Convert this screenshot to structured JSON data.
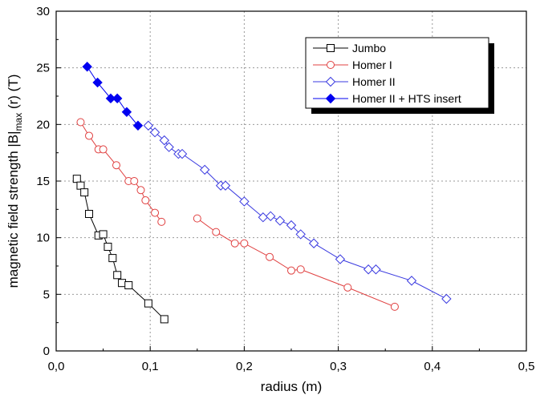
{
  "chart_data": {
    "type": "line",
    "xlabel": "radius (m)",
    "ylabel": {
      "main": "magnetic field strength |B|",
      "subscript": "max",
      "tail": " (r)  (T)"
    },
    "xlim": [
      0.0,
      0.5
    ],
    "ylim": [
      0,
      30
    ],
    "xticks": [
      0.0,
      0.1,
      0.2,
      0.3,
      0.4,
      0.5
    ],
    "xtick_labels": [
      "0,0",
      "0,1",
      "0,2",
      "0,3",
      "0,4",
      "0,5"
    ],
    "yticks": [
      0,
      5,
      10,
      15,
      20,
      25,
      30
    ],
    "ytick_labels": [
      "0",
      "5",
      "10",
      "15",
      "20",
      "25",
      "30"
    ],
    "grid": "dotted",
    "legend_position": "top-right",
    "series": [
      {
        "name": "Jumbo",
        "color": "#000000",
        "marker": "square-open",
        "segments": [
          [
            [
              0.022,
              15.2
            ],
            [
              0.026,
              14.6
            ],
            [
              0.03,
              14.0
            ],
            [
              0.035,
              12.1
            ],
            [
              0.045,
              10.2
            ],
            [
              0.05,
              10.3
            ],
            [
              0.055,
              9.2
            ],
            [
              0.06,
              8.2
            ],
            [
              0.065,
              6.7
            ],
            [
              0.07,
              6.0
            ],
            [
              0.077,
              5.8
            ],
            [
              0.098,
              4.2
            ],
            [
              0.115,
              2.8
            ]
          ]
        ]
      },
      {
        "name": "Homer I",
        "color": "#e04040",
        "marker": "circle-open",
        "segments": [
          [
            [
              0.026,
              20.2
            ],
            [
              0.035,
              19.0
            ],
            [
              0.045,
              17.8
            ],
            [
              0.05,
              17.8
            ],
            [
              0.064,
              16.4
            ],
            [
              0.077,
              15.0
            ],
            [
              0.083,
              15.0
            ],
            [
              0.09,
              14.2
            ],
            [
              0.095,
              13.3
            ],
            [
              0.105,
              12.2
            ],
            [
              0.112,
              11.4
            ]
          ],
          [
            [
              0.15,
              11.7
            ],
            [
              0.17,
              10.5
            ],
            [
              0.19,
              9.5
            ],
            [
              0.2,
              9.5
            ],
            [
              0.227,
              8.3
            ],
            [
              0.25,
              7.1
            ],
            [
              0.26,
              7.2
            ],
            [
              0.31,
              5.6
            ],
            [
              0.36,
              3.9
            ]
          ]
        ]
      },
      {
        "name": "Homer II",
        "color": "#3a3ae0",
        "marker": "diamond-open",
        "segments": [
          [
            [
              0.098,
              19.9
            ],
            [
              0.105,
              19.3
            ],
            [
              0.115,
              18.6
            ],
            [
              0.12,
              18.0
            ],
            [
              0.13,
              17.4
            ],
            [
              0.134,
              17.4
            ],
            [
              0.158,
              16.0
            ],
            [
              0.175,
              14.6
            ],
            [
              0.18,
              14.6
            ],
            [
              0.2,
              13.2
            ],
            [
              0.22,
              11.8
            ],
            [
              0.228,
              11.9
            ],
            [
              0.238,
              11.5
            ],
            [
              0.25,
              11.1
            ],
            [
              0.26,
              10.3
            ],
            [
              0.274,
              9.5
            ],
            [
              0.302,
              8.1
            ],
            [
              0.332,
              7.2
            ],
            [
              0.34,
              7.2
            ],
            [
              0.378,
              6.2
            ],
            [
              0.415,
              4.6
            ]
          ]
        ]
      },
      {
        "name": "Homer II + HTS insert",
        "color": "#0000f0",
        "marker": "diamond-filled",
        "segments": [
          [
            [
              0.033,
              25.1
            ],
            [
              0.044,
              23.7
            ],
            [
              0.058,
              22.3
            ],
            [
              0.065,
              22.3
            ],
            [
              0.075,
              21.1
            ],
            [
              0.087,
              19.9
            ]
          ]
        ]
      }
    ]
  }
}
